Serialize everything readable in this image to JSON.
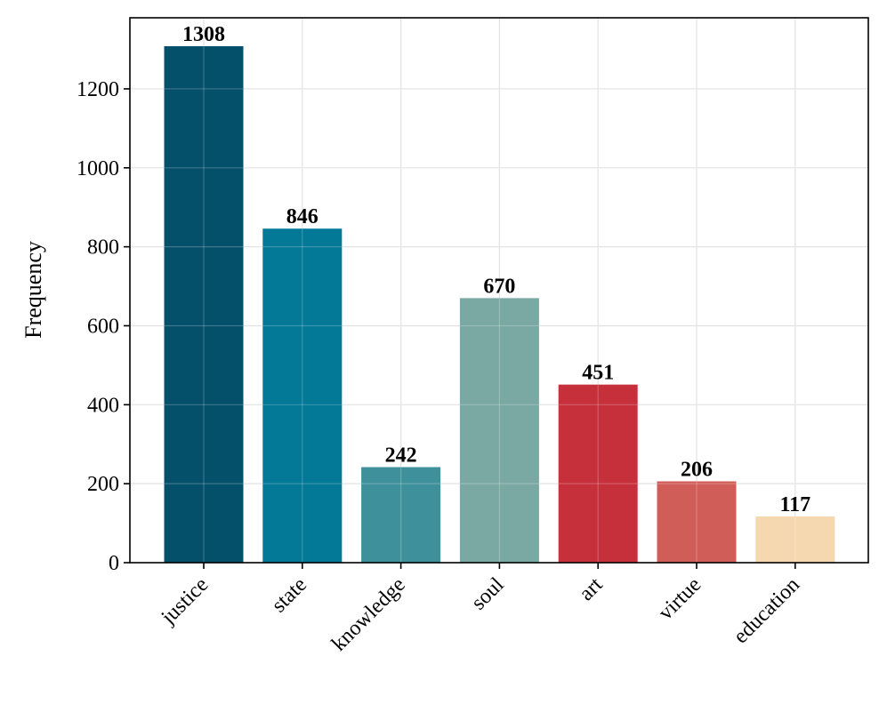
{
  "chart_data": {
    "type": "bar",
    "categories": [
      "justice",
      "state",
      "knowledge",
      "soul",
      "art",
      "virtue",
      "education"
    ],
    "values": [
      1308,
      846,
      242,
      670,
      451,
      206,
      117
    ],
    "colors": [
      "#04506a",
      "#037897",
      "#3e919b",
      "#7aa9a3",
      "#c6303b",
      "#d15d58",
      "#f5d8af"
    ],
    "title": "",
    "xlabel": "",
    "ylabel": "Frequency",
    "ylim": [
      0,
      1380
    ],
    "yticks": [
      0,
      200,
      400,
      600,
      800,
      1000,
      1200
    ],
    "grid": true,
    "x_tick_rotation_deg": 45
  }
}
